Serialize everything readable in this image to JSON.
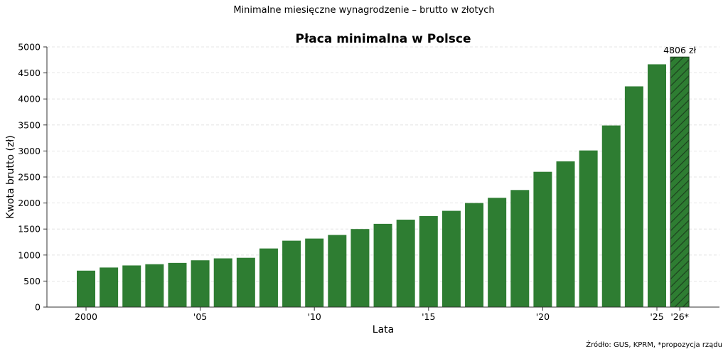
{
  "suptitle": "Minimalne miesięczne wynagrodzenie – brutto w złotych",
  "source": "Źródło: GUS, KPRM, *propozycja rządu",
  "colors": {
    "bar": "#2e7d32",
    "bar_edge": "#1b5e20",
    "axis": "#333333",
    "grid": "#dddddd"
  },
  "chart_data": {
    "type": "bar",
    "title": "Płaca minimalna w Polsce",
    "xlabel": "Lata",
    "ylabel": "Kwota brutto (zł)",
    "ylim": [
      0,
      5000
    ],
    "yticks": [
      "0",
      "500",
      "1000",
      "1500",
      "2000",
      "2500",
      "3000",
      "3500",
      "4000",
      "4500",
      "5000"
    ],
    "grid": "horizontal dashed",
    "categories": [
      "2000",
      "2001",
      "2002",
      "2003",
      "2004",
      "2005",
      "2006",
      "2007",
      "2008",
      "2009",
      "2010",
      "2011",
      "2012",
      "2013",
      "2014",
      "2015",
      "2016",
      "2017",
      "2018",
      "2019",
      "2020",
      "2021",
      "2022",
      "2023",
      "2024",
      "2025",
      "2026*"
    ],
    "values": [
      700,
      760,
      800,
      824,
      849,
      899,
      936,
      947,
      1126,
      1276,
      1317,
      1386,
      1500,
      1600,
      1680,
      1750,
      1850,
      2000,
      2100,
      2250,
      2600,
      2800,
      3010,
      3490,
      4242,
      4666,
      4806
    ],
    "xtick_labels": [
      {
        "category": "2000",
        "label": "2000"
      },
      {
        "category": "2005",
        "label": "'05"
      },
      {
        "category": "2010",
        "label": "'10"
      },
      {
        "category": "2015",
        "label": "'15"
      },
      {
        "category": "2020",
        "label": "'20"
      },
      {
        "category": "2025",
        "label": "'25"
      },
      {
        "category": "2026*",
        "label": "'26*"
      }
    ],
    "highlight": {
      "category": "2026*",
      "style": "hatched",
      "label": "4806 zł"
    }
  }
}
